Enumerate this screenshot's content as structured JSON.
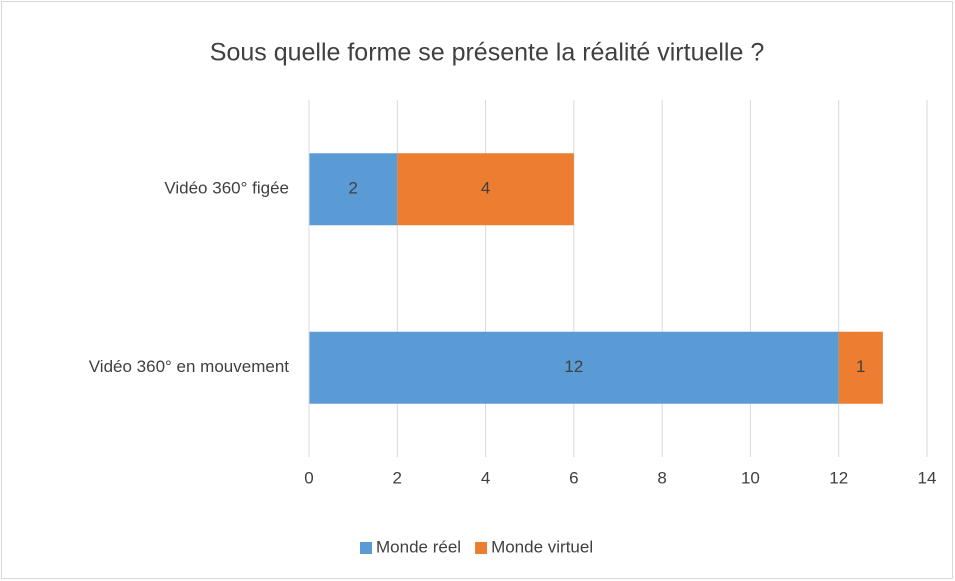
{
  "chart_data": {
    "type": "stacked-bar-horizontal",
    "title": "Sous quelle forme se présente la réalité virtuelle ?",
    "categories": [
      "Vidéo 360° figée",
      "Vidéo 360° en mouvement"
    ],
    "series": [
      {
        "name": "Monde réel",
        "color": "#5b9bd5",
        "values": [
          2,
          12
        ]
      },
      {
        "name": "Monde virtuel",
        "color": "#ed7d31",
        "values": [
          4,
          1
        ]
      }
    ],
    "xlim": [
      0,
      14
    ],
    "xticks": [
      0,
      2,
      4,
      6,
      8,
      10,
      12,
      14
    ],
    "grid": true,
    "legend": "bottom"
  }
}
